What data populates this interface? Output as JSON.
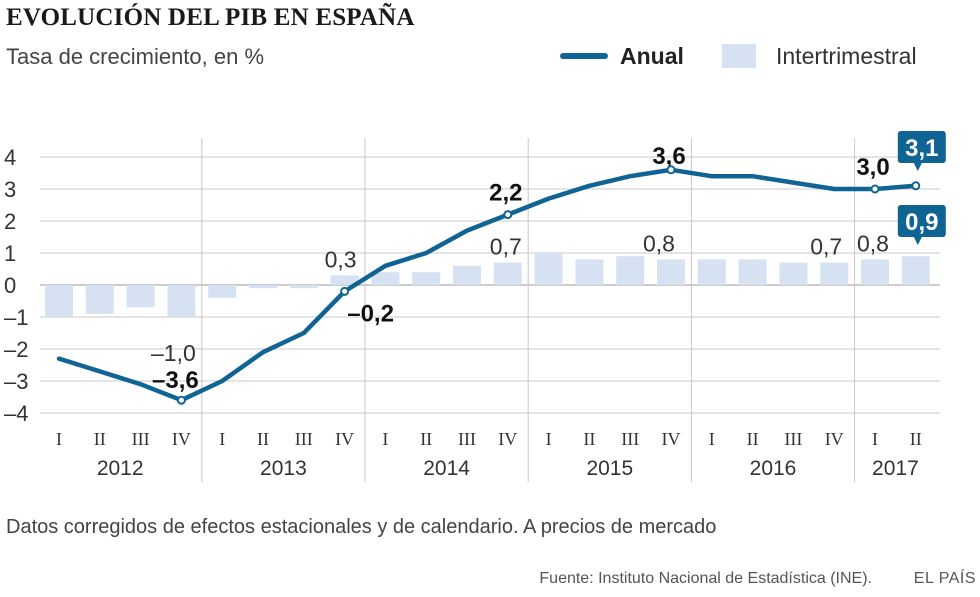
{
  "header": {
    "title": "EVOLUCIÓN DEL PIB EN ESPAÑA",
    "subtitle": "Tasa de crecimiento, en %"
  },
  "legend": {
    "line_label": "Anual",
    "bar_label": "Intertrimestral"
  },
  "footer": {
    "note": "Datos corregidos de efectos estacionales y de calendario. A precios de mercado",
    "source": "Fuente: Instituto Nacional de Estadística (INE).",
    "credit": "EL PAÍS"
  },
  "colors": {
    "line": "#0f6494",
    "bars": "#d6e2f1",
    "grid": "#c8c8c8",
    "text": "#333333",
    "label_box": "#0f6494"
  },
  "chart_data": {
    "type": "bar+line",
    "title": "EVOLUCIÓN DEL PIB EN ESPAÑA",
    "subtitle": "Tasa de crecimiento, en %",
    "ylim": [
      -4,
      4
    ],
    "yticks": [
      4,
      3,
      2,
      1,
      0,
      -1,
      -2,
      -3,
      -4
    ],
    "ytick_labels": [
      "4",
      "3",
      "2",
      "1",
      "0",
      "–1",
      "–2",
      "–3",
      "–4"
    ],
    "grid": true,
    "legend_position": "top-right",
    "quarters": [
      "I",
      "II",
      "III",
      "IV",
      "I",
      "II",
      "III",
      "IV",
      "I",
      "II",
      "III",
      "IV",
      "I",
      "II",
      "III",
      "IV",
      "I",
      "II",
      "III",
      "IV",
      "I",
      "II"
    ],
    "years": [
      {
        "label": "2012",
        "quarters": 4
      },
      {
        "label": "2013",
        "quarters": 4
      },
      {
        "label": "2014",
        "quarters": 4
      },
      {
        "label": "2015",
        "quarters": 4
      },
      {
        "label": "2016",
        "quarters": 4
      },
      {
        "label": "2017",
        "quarters": 2
      }
    ],
    "series": [
      {
        "name": "Intertrimestral",
        "type": "bar",
        "values": [
          -1.0,
          -0.9,
          -0.7,
          -1.0,
          -0.4,
          -0.1,
          -0.1,
          0.3,
          0.4,
          0.4,
          0.6,
          0.7,
          1.0,
          0.8,
          0.9,
          0.8,
          0.8,
          0.8,
          0.7,
          0.7,
          0.8,
          0.9
        ]
      },
      {
        "name": "Anual",
        "type": "line",
        "values": [
          -2.3,
          -2.7,
          -3.1,
          -3.6,
          -3.0,
          -2.1,
          -1.5,
          -0.2,
          0.6,
          1.0,
          1.7,
          2.2,
          2.7,
          3.1,
          3.4,
          3.6,
          3.4,
          3.4,
          3.2,
          3.0,
          3.0,
          3.1
        ]
      }
    ],
    "annotations": [
      {
        "series": "Intertrimestral",
        "index": 3,
        "text": "–1,0",
        "style": "plain"
      },
      {
        "series": "Intertrimestral",
        "index": 7,
        "text": "0,3",
        "style": "plain"
      },
      {
        "series": "Intertrimestral",
        "index": 11,
        "text": "0,7",
        "style": "plain"
      },
      {
        "series": "Intertrimestral",
        "index": 15,
        "text": "0,8",
        "style": "plain"
      },
      {
        "series": "Intertrimestral",
        "index": 19,
        "text": "0,7",
        "style": "plain"
      },
      {
        "series": "Intertrimestral",
        "index": 20,
        "text": "0,8",
        "style": "plain"
      },
      {
        "series": "Intertrimestral",
        "index": 21,
        "text": "0,9",
        "style": "box"
      },
      {
        "series": "Anual",
        "index": 3,
        "text": "–3,6",
        "style": "bold"
      },
      {
        "series": "Anual",
        "index": 7,
        "text": "–0,2",
        "style": "bold"
      },
      {
        "series": "Anual",
        "index": 11,
        "text": "2,2",
        "style": "bold"
      },
      {
        "series": "Anual",
        "index": 15,
        "text": "3,6",
        "style": "bold"
      },
      {
        "series": "Anual",
        "index": 20,
        "text": "3,0",
        "style": "bold"
      },
      {
        "series": "Anual",
        "index": 21,
        "text": "3,1",
        "style": "box"
      }
    ]
  }
}
